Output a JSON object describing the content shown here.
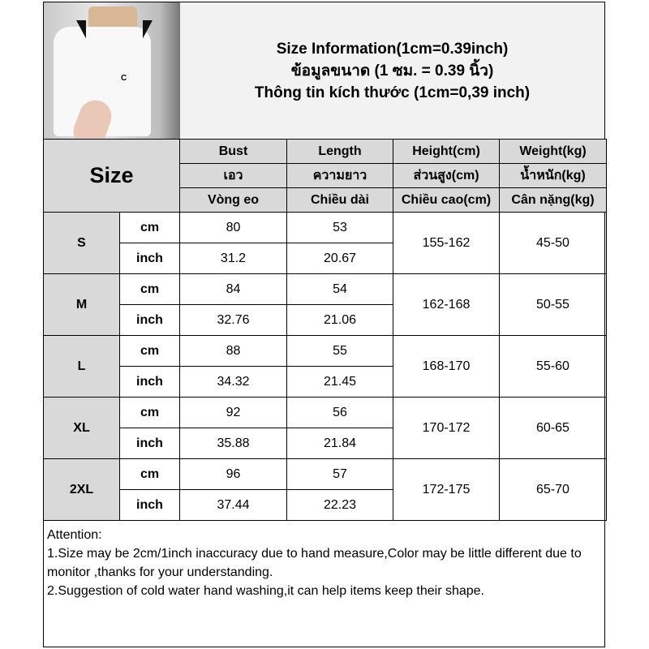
{
  "title": {
    "line1": "Size Information(1cm=0.39inch)",
    "line2": "ข้อมูลขนาด (1 ซม. = 0.39 นิ้ว)",
    "line3": "Thông tin kích thước (1cm=0,39 inch)"
  },
  "photo": {
    "logo_letter": "C"
  },
  "table": {
    "size_header": "Size",
    "headers": [
      [
        "Bust",
        "Length",
        "Height(cm)",
        "Weight(kg)"
      ],
      [
        "เอว",
        "ความยาว",
        "ส่วนสูง(cm)",
        "น้ำหนัก(kg)"
      ],
      [
        "Vòng eo",
        "Chiều dài",
        "Chiều cao(cm)",
        "Cân nặng(kg)"
      ]
    ],
    "rows": [
      {
        "size": "S",
        "cm_label": "cm",
        "inch_label": "inch",
        "bust_cm": "80",
        "length_cm": "53",
        "bust_in": "31.2",
        "length_in": "20.67",
        "height": "155-162",
        "weight": "45-50"
      },
      {
        "size": "M",
        "cm_label": "cm",
        "inch_label": "inch",
        "bust_cm": "84",
        "length_cm": "54",
        "bust_in": "32.76",
        "length_in": "21.06",
        "height": "162-168",
        "weight": "50-55"
      },
      {
        "size": "L",
        "cm_label": "cm",
        "inch_label": "inch",
        "bust_cm": "88",
        "length_cm": "55",
        "bust_in": "34.32",
        "length_in": "21.45",
        "height": "168-170",
        "weight": "55-60"
      },
      {
        "size": "XL",
        "cm_label": "cm",
        "inch_label": "inch",
        "bust_cm": "92",
        "length_cm": "56",
        "bust_in": "35.88",
        "length_in": "21.84",
        "height": "170-172",
        "weight": "60-65"
      },
      {
        "size": "2XL",
        "cm_label": "cm",
        "inch_label": "inch",
        "bust_cm": "96",
        "length_cm": "57",
        "bust_in": "37.44",
        "length_in": "22.23",
        "height": "172-175",
        "weight": "65-70"
      }
    ]
  },
  "attention": {
    "heading": "Attention:",
    "line1": "1.Size may be 2cm/1inch inaccuracy due to hand measure,Color may be little different due to monitor ,thanks for your understanding.",
    "line2": "2.Suggestion of cold water hand washing,it can help items keep their shape."
  }
}
